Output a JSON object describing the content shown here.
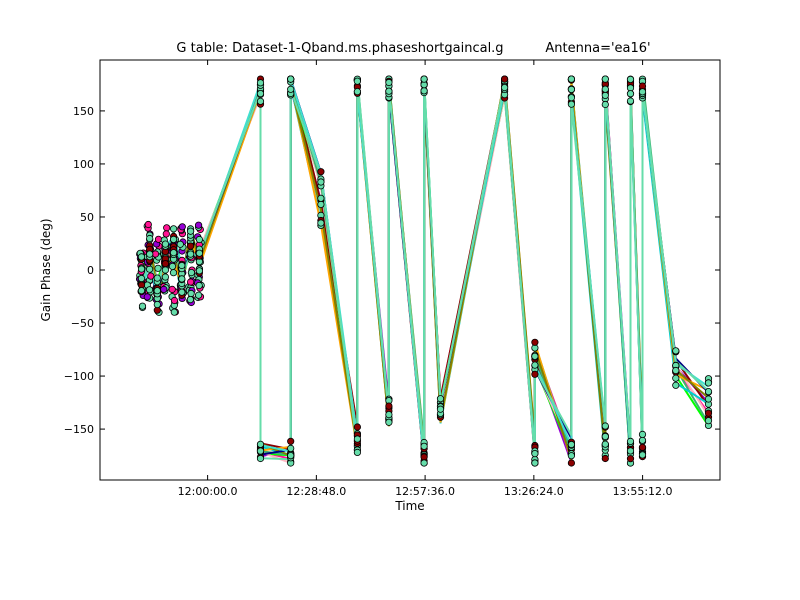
{
  "chart_data": {
    "type": "line",
    "title": "G table: Dataset-1-Qband.ms.phaseshortgaincal.g",
    "subtitle": "Antenna='ea16'",
    "xlabel": "Time",
    "ylabel": "Gain Phase (deg)",
    "x_ticks": [
      "12:00:00.0",
      "12:28:48.0",
      "12:57:36.0",
      "13:26:24.0",
      "13:55:12.0"
    ],
    "x_tick_seconds": [
      43200,
      44928,
      46656,
      48384,
      50112
    ],
    "xlim_seconds": [
      41490,
      51342
    ],
    "y_ticks": [
      -150,
      -100,
      -50,
      0,
      50,
      100,
      150
    ],
    "ylim": [
      -198,
      198
    ],
    "grid": false,
    "legend": "none",
    "marker_color": "#66ddaa",
    "series_colors": [
      "#ff1493",
      "#9400d3",
      "#8b0000",
      "#00ff00",
      "#ffb6c1",
      "#3cb371",
      "#00ced1",
      "#ffa500",
      "#808000",
      "#000080",
      "#40e0d0",
      "#66ddaa"
    ],
    "clusters_seconds": [
      [
        42120,
        42180
      ],
      [
        42240,
        42300
      ],
      [
        42370,
        42430
      ],
      [
        42500,
        42560
      ],
      [
        42630,
        42690
      ],
      [
        42760,
        42820
      ],
      [
        42900,
        42960
      ],
      [
        43040,
        43100
      ]
    ],
    "series": [
      {
        "x_seconds": [
          42150,
          42280,
          42400,
          42530,
          42660,
          42790,
          42930,
          43070,
          44040,
          44040,
          44520,
          44520,
          45000,
          45580,
          45580,
          46080,
          46080,
          46640,
          46640,
          46900,
          47920,
          48400,
          48400,
          48980,
          48980,
          49520,
          49520,
          49920,
          49920,
          50110,
          50110,
          50640,
          51160
        ],
        "values": [
          -20,
          15,
          -30,
          5,
          20,
          -10,
          30,
          10,
          170,
          -170,
          -175,
          175,
          60,
          -150,
          175,
          -130,
          170,
          -180,
          170,
          -120,
          175,
          -170,
          -80,
          -175,
          175,
          -170,
          175,
          -175,
          175,
          -170,
          170,
          -90,
          -130
        ]
      },
      {
        "x_seconds": [
          42150,
          42280,
          42400,
          42530,
          42660,
          42790,
          42930,
          43070,
          44040,
          44040,
          44520,
          44520,
          45000,
          45580,
          45580,
          46080,
          46080,
          46640,
          46640,
          46900,
          47920,
          48400,
          48400,
          48980,
          48980,
          49520,
          49520,
          49920,
          49920,
          50110,
          50110,
          50640,
          51160
        ],
        "values": [
          -5,
          20,
          -15,
          10,
          30,
          -5,
          25,
          15,
          165,
          -175,
          -180,
          178,
          75,
          -160,
          178,
          -140,
          175,
          -170,
          175,
          -130,
          170,
          -175,
          -85,
          -170,
          178,
          -165,
          170,
          -178,
          178,
          -175,
          175,
          -95,
          -140
        ]
      },
      {
        "x_seconds": [
          42150,
          42280,
          42400,
          42530,
          42660,
          42790,
          42930,
          43070,
          44040,
          44040,
          44520,
          44520,
          45000,
          45580,
          45580,
          46080,
          46080,
          46640,
          46640,
          46900,
          47920,
          48400,
          48400,
          48980,
          48980,
          49520,
          49520,
          49920,
          49920,
          50110,
          50110,
          50640,
          51160
        ],
        "values": [
          5,
          25,
          -20,
          0,
          15,
          -15,
          35,
          5,
          175,
          -165,
          -170,
          172,
          50,
          -170,
          172,
          -145,
          178,
          -175,
          172,
          -140,
          178,
          -165,
          -75,
          -178,
          170,
          -172,
          165,
          -165,
          172,
          -160,
          165,
          -100,
          -120
        ]
      },
      {
        "x_seconds": [
          42150,
          42280,
          42400,
          42530,
          42660,
          42790,
          42930,
          43070,
          44040,
          44040,
          44520,
          44520,
          45000,
          45580,
          45580,
          46080,
          46080,
          46640,
          46640,
          46900,
          47920,
          48400,
          48400,
          48980,
          48980,
          49520,
          49520,
          49920,
          49920,
          50110,
          50110,
          50640,
          51160
        ],
        "values": [
          -15,
          10,
          -25,
          20,
          25,
          0,
          20,
          20,
          172,
          -172,
          -176,
          176,
          90,
          -165,
          176,
          -135,
          172,
          -178,
          178,
          -125,
          174,
          -178,
          -90,
          -160,
          160,
          -150,
          178,
          -170,
          165,
          -168,
          172,
          -85,
          -110
        ]
      }
    ]
  }
}
